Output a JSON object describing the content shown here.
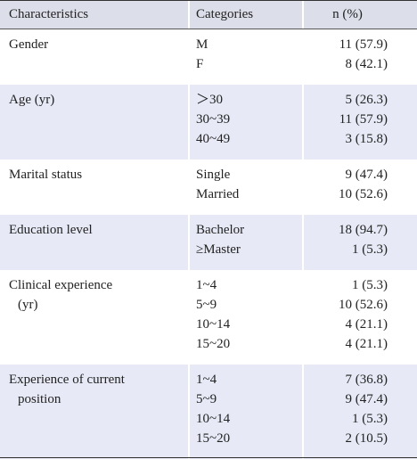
{
  "table": {
    "header": [
      "Characteristics",
      "Categories",
      "n (%)"
    ],
    "groups": [
      {
        "characteristic": [
          "Gender"
        ],
        "rows": [
          [
            "M",
            "11 (57.9)"
          ],
          [
            "F",
            "8 (42.1)"
          ]
        ]
      },
      {
        "characteristic": [
          "Age (yr)"
        ],
        "rows": [
          [
            "＞30",
            "5 (26.3)"
          ],
          [
            "30~39",
            "11 (57.9)"
          ],
          [
            "40~49",
            "3 (15.8)"
          ]
        ]
      },
      {
        "characteristic": [
          "Marital status"
        ],
        "rows": [
          [
            "Single",
            "9 (47.4)"
          ],
          [
            "Married",
            "10 (52.6)"
          ]
        ]
      },
      {
        "characteristic": [
          "Education level"
        ],
        "rows": [
          [
            "Bachelor",
            "18 (94.7)"
          ],
          [
            "≥Master",
            "1 (5.3)"
          ]
        ]
      },
      {
        "characteristic": [
          "Clinical experience",
          "(yr)"
        ],
        "rows": [
          [
            "1~4",
            "1 (5.3)"
          ],
          [
            "5~9",
            "10 (52.6)"
          ],
          [
            "10~14",
            "4 (21.1)"
          ],
          [
            "15~20",
            "4 (21.1)"
          ]
        ]
      },
      {
        "characteristic": [
          "Experience of current",
          "position"
        ],
        "rows": [
          [
            "1~4",
            "7 (36.8)"
          ],
          [
            "5~9",
            "9 (47.4)"
          ],
          [
            "10~14",
            "1 (5.3)"
          ],
          [
            "15~20",
            "2 (10.5)"
          ]
        ]
      }
    ]
  }
}
